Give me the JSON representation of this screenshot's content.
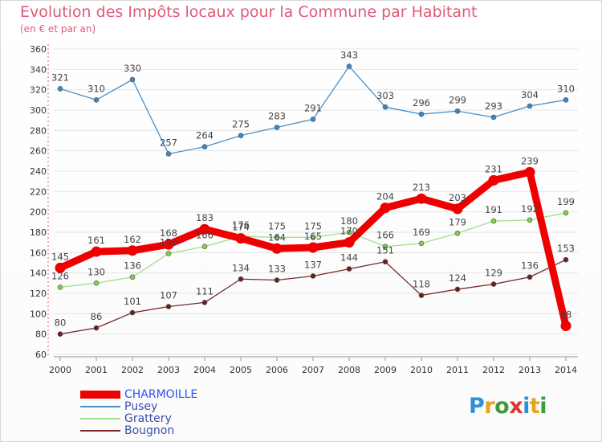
{
  "page": {
    "title": "Evolution des Impôts locaux pour la Commune par Habitant",
    "subtitle": "(en € et par an)"
  },
  "logo": {
    "text": "Proxiti",
    "letter_colors": [
      "#2f8fd8",
      "#e8a31a",
      "#3d9b3d",
      "#e0342e",
      "#2f8fd8",
      "#e8a31a",
      "#3d9b3d"
    ]
  },
  "chart_data": {
    "type": "line",
    "title": "Evolution des Impôts locaux pour la Commune par Habitant",
    "subtitle": "(en € et par an)",
    "xlabel": "",
    "ylabel": "",
    "x": [
      "2000",
      "2001",
      "2002",
      "2003",
      "2004",
      "2005",
      "2006",
      "2007",
      "2008",
      "2009",
      "2010",
      "2011",
      "2012",
      "2013",
      "2014"
    ],
    "ylim": [
      60,
      360
    ],
    "yticks": [
      60,
      80,
      100,
      120,
      140,
      160,
      180,
      200,
      220,
      240,
      260,
      280,
      300,
      320,
      340,
      360
    ],
    "grid": "horizontal",
    "legend_position": "bottom-left",
    "series": [
      {
        "name": "Pusey",
        "color": "#4a90c8",
        "marker_color": "#3a86c8",
        "values": [
          321,
          310,
          330,
          257,
          264,
          275,
          283,
          291,
          343,
          303,
          296,
          299,
          293,
          304,
          310
        ]
      },
      {
        "name": "Grattery",
        "color": "#9ee08a",
        "marker_color": "#7fcf4e",
        "values": [
          126,
          130,
          136,
          159,
          166,
          176,
          175,
          175,
          180,
          166,
          169,
          179,
          191,
          192,
          199
        ]
      },
      {
        "name": "Bougnon",
        "color": "#7a2a2a",
        "marker_color": "#6a1f1f",
        "values": [
          80,
          86,
          101,
          107,
          111,
          134,
          133,
          137,
          144,
          151,
          118,
          124,
          129,
          136,
          153
        ]
      },
      {
        "name": "CHARMOILLE",
        "color": "#ee0000",
        "marker_color": "#ee0000",
        "values": [
          145,
          161,
          162,
          168,
          183,
          174,
          164,
          165,
          170,
          204,
          213,
          203,
          231,
          239,
          88
        ]
      }
    ],
    "legend_order": [
      "CHARMOILLE",
      "Pusey",
      "Grattery",
      "Bougnon"
    ]
  }
}
